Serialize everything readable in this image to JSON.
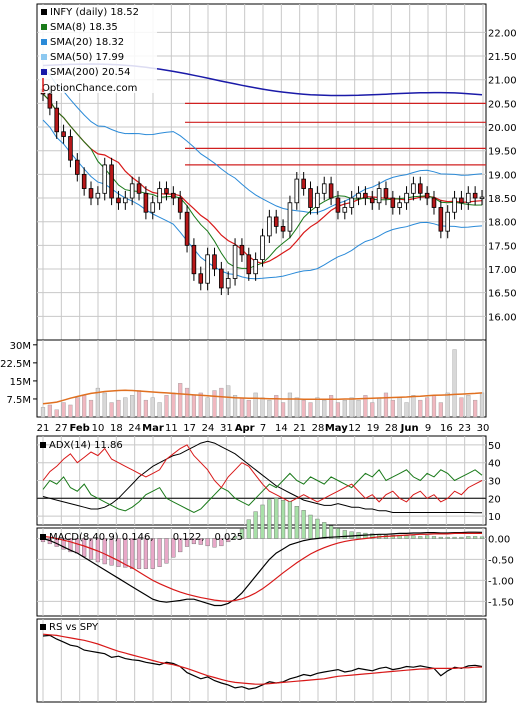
{
  "chart_data": [
    {
      "type": "candlestick",
      "panel": "price",
      "legend": [
        {
          "label": "INFY (daily) 18.52",
          "color": "#000000"
        },
        {
          "label": "SMA(8) 18.35",
          "color": "#1a7a1a"
        },
        {
          "label": "SMA(20) 18.32",
          "color": "#2a8ad8"
        },
        {
          "label": "SMA(50) 17.99",
          "color": "#8cc8f0"
        },
        {
          "label": "SMA(200) 20.54",
          "color": "#1a1aa8"
        }
      ],
      "watermark": "OptionChance.com",
      "ylim": [
        15.5,
        22.6
      ],
      "y_ticks": [
        "16.00",
        "16.50",
        "17.00",
        "17.50",
        "18.00",
        "18.50",
        "19.00",
        "19.50",
        "20.00",
        "20.50",
        "21.00",
        "21.50",
        "22.00"
      ],
      "resistance_lines": [
        20.5,
        20.1,
        19.55,
        19.2
      ],
      "close": [
        20.7,
        20.4,
        19.9,
        19.8,
        19.3,
        19.0,
        18.7,
        18.5,
        18.6,
        19.2,
        18.5,
        18.4,
        18.5,
        18.8,
        18.6,
        18.2,
        18.4,
        18.7,
        18.6,
        18.5,
        18.2,
        17.5,
        16.9,
        16.7,
        17.3,
        17.0,
        16.6,
        16.8,
        17.5,
        17.3,
        16.9,
        17.2,
        17.7,
        18.1,
        17.9,
        17.8,
        18.4,
        18.9,
        18.7,
        18.3,
        18.6,
        18.8,
        18.5,
        18.2,
        18.3,
        18.5,
        18.6,
        18.5,
        18.4,
        18.7,
        18.5,
        18.3,
        18.4,
        18.6,
        18.8,
        18.6,
        18.5,
        18.3,
        17.8,
        18.2,
        18.5,
        18.4,
        18.6,
        18.5,
        18.52
      ]
    },
    {
      "type": "bar",
      "panel": "volume",
      "y_ticks": [
        "7.5M",
        "15M",
        "22.5M",
        "30M"
      ],
      "ylim": [
        0,
        32
      ],
      "values": [
        4,
        5,
        3,
        6,
        5,
        8,
        9,
        7,
        12,
        10,
        6,
        7,
        8,
        9,
        11,
        7,
        8,
        6,
        9,
        10,
        14,
        12,
        9,
        10,
        8,
        11,
        12,
        13,
        9,
        8,
        7,
        10,
        8,
        7,
        9,
        6,
        10,
        8,
        7,
        6,
        8,
        7,
        9,
        6,
        7,
        8,
        7,
        9,
        6,
        8,
        10,
        7,
        8,
        6,
        9,
        7,
        8,
        9,
        6,
        10,
        28,
        8,
        9,
        7,
        10
      ],
      "ma_line": [
        5.5,
        5.8,
        6.2,
        7.0,
        7.8,
        8.5,
        9.2,
        9.8,
        10.2,
        10.6,
        10.8,
        11.0,
        11.1,
        11.0,
        10.8,
        10.6,
        10.4,
        10.2,
        10.0,
        9.8,
        9.6,
        9.4,
        9.2,
        9.0,
        8.8,
        8.6,
        8.4,
        8.2,
        8.0,
        7.9,
        7.8,
        7.8,
        7.7,
        7.6,
        7.6,
        7.5,
        7.5,
        7.5,
        7.4,
        7.4,
        7.4,
        7.4,
        7.4,
        7.4,
        7.5,
        7.5,
        7.6,
        7.7,
        7.8,
        7.9,
        8.0,
        8.1,
        8.2,
        8.3,
        8.5,
        8.6,
        8.8,
        9.0,
        9.1,
        9.2,
        9.4,
        9.5,
        9.7,
        9.8,
        10.0
      ]
    },
    {
      "type": "line",
      "panel": "adx",
      "legend": [
        {
          "label": "ADX(14) 11.86",
          "color": "#000000"
        }
      ],
      "ylim": [
        5,
        55
      ],
      "y_ticks": [
        "10",
        "20",
        "30",
        "40",
        "50"
      ],
      "series": [
        {
          "name": "ADX(14)",
          "color": "#000000",
          "values": [
            21,
            20,
            19,
            18,
            17,
            16,
            15,
            14,
            14,
            15,
            17,
            20,
            24,
            28,
            32,
            35,
            38,
            40,
            42,
            44,
            45,
            47,
            49,
            51,
            52,
            51,
            49,
            47,
            45,
            42,
            39,
            36,
            33,
            30,
            27,
            25,
            23,
            21,
            19,
            18,
            17,
            16,
            16,
            17,
            16,
            15,
            15,
            14,
            14,
            13,
            13,
            12,
            12,
            12,
            12,
            12,
            12,
            12,
            12,
            12,
            12,
            12,
            12,
            11.9,
            11.86
          ]
        },
        {
          "name": "+DI",
          "color": "#1a7a1a",
          "values": [
            25,
            30,
            28,
            32,
            26,
            24,
            28,
            22,
            20,
            18,
            16,
            14,
            13,
            15,
            18,
            22,
            24,
            26,
            20,
            18,
            16,
            14,
            12,
            14,
            18,
            22,
            26,
            24,
            20,
            18,
            16,
            20,
            24,
            28,
            26,
            30,
            34,
            30,
            28,
            32,
            30,
            28,
            32,
            30,
            28,
            26,
            30,
            34,
            32,
            36,
            30,
            32,
            34,
            36,
            32,
            30,
            34,
            32,
            36,
            34,
            30,
            32,
            34,
            36,
            33
          ]
        },
        {
          "name": "-DI",
          "color": "#d81818",
          "values": [
            30,
            35,
            38,
            42,
            45,
            40,
            43,
            46,
            44,
            48,
            42,
            40,
            38,
            36,
            34,
            32,
            34,
            36,
            42,
            45,
            48,
            50,
            44,
            40,
            36,
            30,
            26,
            32,
            36,
            40,
            38,
            33,
            28,
            24,
            22,
            20,
            18,
            20,
            22,
            20,
            18,
            20,
            22,
            24,
            26,
            28,
            24,
            20,
            22,
            18,
            22,
            24,
            20,
            18,
            22,
            24,
            20,
            22,
            18,
            20,
            24,
            22,
            26,
            28,
            30
          ]
        }
      ],
      "ref_lines": [
        20
      ]
    },
    {
      "type": "line",
      "panel": "macd",
      "legend": [
        {
          "label": "MACD(8,40,9) 0.146,",
          "color": "#000000"
        },
        {
          "label": "0.122,",
          "color": "#d81818"
        },
        {
          "label": "0.025",
          "color": "#2a6ad8"
        }
      ],
      "ylim": [
        -1.85,
        0.25
      ],
      "y_ticks": [
        "0.00",
        "-0.50",
        "-1.00",
        "-1.50"
      ],
      "series": [
        {
          "name": "MACD",
          "color": "#000000",
          "values": [
            0.0,
            -0.05,
            -0.12,
            -0.2,
            -0.28,
            -0.35,
            -0.45,
            -0.55,
            -0.65,
            -0.75,
            -0.85,
            -0.95,
            -1.05,
            -1.15,
            -1.25,
            -1.35,
            -1.45,
            -1.5,
            -1.52,
            -1.5,
            -1.48,
            -1.45,
            -1.45,
            -1.5,
            -1.55,
            -1.6,
            -1.6,
            -1.55,
            -1.45,
            -1.3,
            -1.1,
            -0.9,
            -0.7,
            -0.5,
            -0.35,
            -0.25,
            -0.15,
            -0.1,
            -0.05,
            -0.02,
            0.0,
            0.02,
            0.03,
            0.04,
            0.05,
            0.06,
            0.07,
            0.08,
            0.09,
            0.1,
            0.1,
            0.11,
            0.12,
            0.12,
            0.13,
            0.13,
            0.14,
            0.14,
            0.13,
            0.13,
            0.14,
            0.14,
            0.15,
            0.15,
            0.146
          ]
        },
        {
          "name": "Signal",
          "color": "#d81818",
          "values": [
            0.05,
            0.03,
            0.0,
            -0.04,
            -0.08,
            -0.13,
            -0.18,
            -0.24,
            -0.3,
            -0.37,
            -0.45,
            -0.53,
            -0.62,
            -0.7,
            -0.8,
            -0.9,
            -1.0,
            -1.08,
            -1.15,
            -1.22,
            -1.28,
            -1.33,
            -1.37,
            -1.41,
            -1.44,
            -1.47,
            -1.49,
            -1.5,
            -1.48,
            -1.44,
            -1.38,
            -1.3,
            -1.2,
            -1.08,
            -0.95,
            -0.82,
            -0.7,
            -0.58,
            -0.47,
            -0.37,
            -0.29,
            -0.22,
            -0.16,
            -0.11,
            -0.07,
            -0.04,
            -0.02,
            0.0,
            0.02,
            0.04,
            0.05,
            0.06,
            0.07,
            0.08,
            0.09,
            0.1,
            0.1,
            0.11,
            0.11,
            0.11,
            0.12,
            0.12,
            0.12,
            0.12,
            0.122
          ]
        }
      ]
    },
    {
      "type": "line",
      "panel": "rs",
      "legend": [
        {
          "label": "RS vs SPY",
          "color": "#000000"
        }
      ],
      "series": [
        {
          "name": "RS",
          "color": "#000000",
          "values": [
            0.95,
            0.96,
            0.9,
            0.85,
            0.8,
            0.78,
            0.72,
            0.7,
            0.68,
            0.66,
            0.6,
            0.62,
            0.58,
            0.56,
            0.55,
            0.52,
            0.5,
            0.48,
            0.52,
            0.5,
            0.45,
            0.35,
            0.3,
            0.25,
            0.28,
            0.22,
            0.18,
            0.15,
            0.1,
            0.12,
            0.08,
            0.1,
            0.15,
            0.2,
            0.18,
            0.2,
            0.25,
            0.28,
            0.32,
            0.3,
            0.34,
            0.36,
            0.38,
            0.4,
            0.36,
            0.38,
            0.42,
            0.4,
            0.38,
            0.42,
            0.44,
            0.4,
            0.42,
            0.45,
            0.44,
            0.46,
            0.44,
            0.42,
            0.3,
            0.38,
            0.44,
            0.42,
            0.46,
            0.47,
            0.45
          ]
        },
        {
          "name": "MA",
          "color": "#d81818",
          "values": [
            0.98,
            0.97,
            0.96,
            0.94,
            0.92,
            0.9,
            0.88,
            0.85,
            0.82,
            0.78,
            0.74,
            0.7,
            0.67,
            0.64,
            0.61,
            0.58,
            0.55,
            0.52,
            0.5,
            0.48,
            0.45,
            0.42,
            0.38,
            0.34,
            0.3,
            0.27,
            0.24,
            0.21,
            0.19,
            0.18,
            0.17,
            0.16,
            0.16,
            0.17,
            0.18,
            0.19,
            0.2,
            0.21,
            0.22,
            0.23,
            0.24,
            0.25,
            0.27,
            0.29,
            0.3,
            0.31,
            0.32,
            0.33,
            0.34,
            0.35,
            0.36,
            0.37,
            0.38,
            0.39,
            0.4,
            0.41,
            0.41,
            0.42,
            0.42,
            0.42,
            0.42,
            0.43,
            0.43,
            0.44,
            0.44
          ]
        }
      ]
    }
  ],
  "x_axis": {
    "labels": [
      {
        "text": "21",
        "bold": false
      },
      {
        "text": "27",
        "bold": false
      },
      {
        "text": "Feb",
        "bold": true
      },
      {
        "text": "10",
        "bold": false
      },
      {
        "text": "18",
        "bold": false
      },
      {
        "text": "24",
        "bold": false
      },
      {
        "text": "Mar",
        "bold": true
      },
      {
        "text": "11",
        "bold": false
      },
      {
        "text": "17",
        "bold": false
      },
      {
        "text": "24",
        "bold": false
      },
      {
        "text": "31",
        "bold": false
      },
      {
        "text": "Apr",
        "bold": true
      },
      {
        "text": "7",
        "bold": false
      },
      {
        "text": "14",
        "bold": false
      },
      {
        "text": "21",
        "bold": false
      },
      {
        "text": "28",
        "bold": false
      },
      {
        "text": "May",
        "bold": true
      },
      {
        "text": "12",
        "bold": false
      },
      {
        "text": "19",
        "bold": false
      },
      {
        "text": "28",
        "bold": false
      },
      {
        "text": "Jun",
        "bold": true
      },
      {
        "text": "9",
        "bold": false
      },
      {
        "text": "16",
        "bold": false
      },
      {
        "text": "23",
        "bold": false
      },
      {
        "text": "30",
        "bold": false
      }
    ]
  },
  "colors": {
    "up": "#ffffff",
    "down": "#b8181a",
    "grid": "#c8c8c8",
    "resistance": "#d02020",
    "sma8": "#1a7a1a",
    "sma20": "#2a8ad8",
    "sma50": "#d81818",
    "sma200": "#1a1aa8",
    "volume_up": "#d8d8d8",
    "volume_down": "#f0b8c0",
    "volume_ma": "#e07020",
    "macd_pos": "#a8e0a8",
    "macd_neg": "#e8a8c8"
  }
}
